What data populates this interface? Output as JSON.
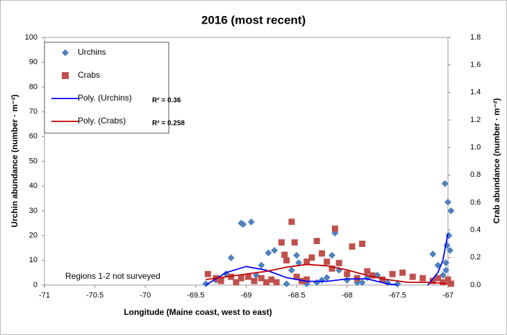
{
  "chart_data": {
    "type": "scatter",
    "title": "2016 (most recent)",
    "x_label": "Longitude (Maine coast, west to east)",
    "y_label": "Urchin abundance (number · m⁻²)",
    "y2_label": "Crab abundance (number · m⁻²)",
    "annotation": "Regions 1-2 not surveyed",
    "legend": "upper left",
    "xlim": [
      -71,
      -67
    ],
    "xticks": [
      -71,
      -70.5,
      -70,
      -69.5,
      -69,
      -68.5,
      -68,
      -67.5,
      -67
    ],
    "ylim": [
      0,
      100
    ],
    "yticks": [
      0,
      10,
      20,
      30,
      40,
      50,
      60,
      70,
      80,
      90,
      100
    ],
    "y2lim": [
      0,
      1.8
    ],
    "y2ticks": [
      {
        "value": 0,
        "label": "0.0"
      },
      0.2,
      0.4,
      0.6,
      0.8,
      {
        "value": 1,
        "label": "1.0"
      },
      1.2,
      1.4,
      1.6,
      1.8
    ],
    "series": [
      {
        "name": "Urchins",
        "type": "scatter",
        "marker": "diamond",
        "color": "#4f81bd",
        "axis": "y",
        "x": [
          -69.15,
          -69.05,
          -69.03,
          -68.95,
          -68.85,
          -68.78,
          -68.72,
          -68.9,
          -68.5,
          -68.48,
          -68.55,
          -68.6,
          -68.3,
          -68.2,
          -68.15,
          -68.12,
          -68.08,
          -68.0,
          -67.9,
          -67.8,
          -67.7,
          -67.6,
          -67.5,
          -67.15,
          -67.1,
          -67.05,
          -67.03,
          -67.01,
          -67.0,
          -66.99,
          -66.98,
          -66.97,
          -67.02,
          -67.02,
          -69.4,
          -69.3,
          -69.2,
          -68.4,
          -68.25,
          -67.85
        ],
        "values": [
          11,
          25,
          24.5,
          25.5,
          8,
          13,
          14,
          4,
          12,
          9,
          6,
          0.5,
          1,
          3,
          12,
          21,
          6,
          2,
          1,
          3,
          4,
          1,
          0.5,
          12.5,
          8,
          4,
          41,
          16,
          33.5,
          20,
          14,
          30,
          9,
          6,
          0.5,
          2,
          4.5,
          0.5,
          2,
          1
        ]
      },
      {
        "name": "Crabs",
        "type": "scatter",
        "marker": "square",
        "color": "#c0504d",
        "axis": "y2",
        "x": [
          -69.38,
          -69.3,
          -69.25,
          -69.15,
          -69.1,
          -69.05,
          -68.98,
          -68.92,
          -68.85,
          -68.8,
          -68.75,
          -68.65,
          -68.62,
          -68.6,
          -68.55,
          -68.52,
          -68.5,
          -68.45,
          -68.4,
          -68.35,
          -68.3,
          -68.25,
          -68.2,
          -68.15,
          -68.12,
          -68.08,
          -68.0,
          -67.95,
          -67.9,
          -67.85,
          -67.8,
          -67.75,
          -67.65,
          -67.55,
          -67.45,
          -67.35,
          -67.25,
          -67.15,
          -67.1,
          -67.05,
          -67.0,
          -66.97,
          -68.7,
          -68.4
        ],
        "values": [
          0.08,
          0.05,
          0.03,
          0.06,
          0.02,
          0.05,
          0.06,
          0.03,
          0.05,
          0.02,
          0.04,
          0.31,
          0.22,
          0.18,
          0.46,
          0.31,
          0.06,
          0.03,
          0.17,
          0.2,
          0.32,
          0.23,
          0.17,
          0.12,
          0.41,
          0.16,
          0.08,
          0.28,
          0.05,
          0.3,
          0.1,
          0.07,
          0.04,
          0.08,
          0.09,
          0.06,
          0.05,
          0.03,
          0.05,
          0.02,
          0.04,
          0.01,
          0.02,
          0.04
        ]
      },
      {
        "name": "Poly. (Urchins)",
        "type": "line",
        "color": "#0000ff",
        "axis": "y",
        "annotation": "R² = 0.36",
        "x": [
          -69.4,
          -69.2,
          -69.0,
          -68.8,
          -68.6,
          -68.4,
          -68.2,
          -68.0,
          -67.8,
          -67.6,
          -67.5,
          null,
          -67.2,
          -67.1,
          -67.05,
          -67.0
        ],
        "values": [
          0,
          5,
          7.5,
          6,
          3,
          1.5,
          1.5,
          2.5,
          2.5,
          0.5,
          0,
          null,
          0,
          5,
          10,
          21
        ]
      },
      {
        "name": "Poly. (Crabs)",
        "type": "line",
        "color": "#c00000",
        "axis": "y2",
        "annotation": "R² = 0.258",
        "x": [
          -69.4,
          -69.2,
          -69.0,
          -68.8,
          -68.6,
          -68.4,
          -68.2,
          -68.0,
          -67.8,
          -67.6,
          -67.4,
          -67.2,
          -67.0
        ],
        "values": [
          0.04,
          0.06,
          0.08,
          0.1,
          0.13,
          0.15,
          0.14,
          0.11,
          0.07,
          0.04,
          0.02,
          0.02,
          0.01
        ]
      }
    ]
  }
}
